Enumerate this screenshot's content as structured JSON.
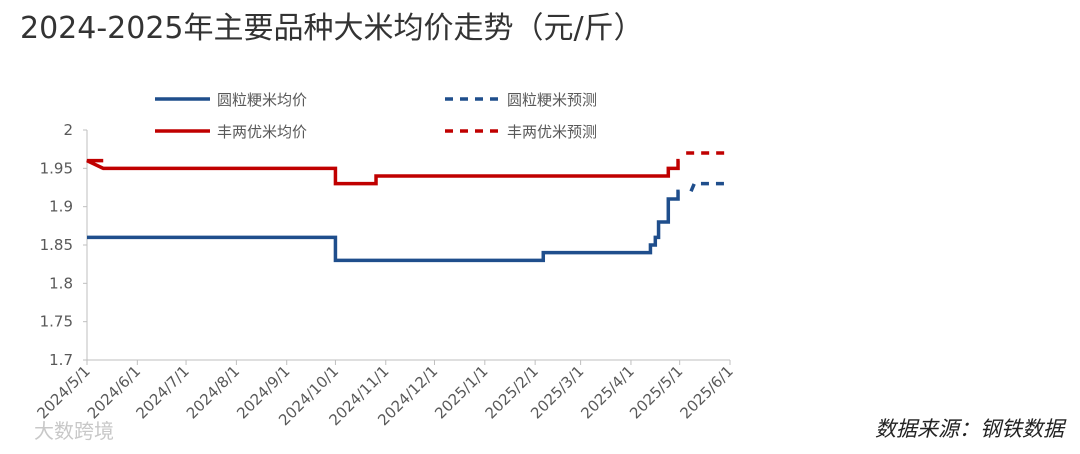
{
  "chart_data": {
    "type": "line",
    "title": "2024-2025年主要品种大米均价走势（元/斤）",
    "source": "数据来源：钢铁数据",
    "watermark": "大数跨境",
    "xlim": [
      "2024/5/1",
      "2025/6/1"
    ],
    "xticks": [
      "2024/5/1",
      "2024/6/1",
      "2024/7/1",
      "2024/8/1",
      "2024/9/1",
      "2024/10/1",
      "2024/11/1",
      "2024/12/1",
      "2025/1/1",
      "2025/2/1",
      "2025/3/1",
      "2025/4/1",
      "2025/5/1",
      "2025/6/1"
    ],
    "ylim": [
      1.7,
      2
    ],
    "yticks": [
      1.7,
      1.75,
      1.8,
      1.85,
      1.9,
      1.95,
      2
    ],
    "grid": false,
    "series": [
      {
        "name": "圆粒粳米均价",
        "color": "#1f4e8c",
        "dash": false,
        "x": [
          "2024/5/1",
          "2024/10/1",
          "2024/10/1",
          "2025/2/6",
          "2025/2/6",
          "2025/4/13",
          "2025/4/13",
          "2025/4/16",
          "2025/4/16",
          "2025/4/18",
          "2025/4/18",
          "2025/4/24",
          "2025/4/24",
          "2025/4/30",
          "2025/4/30",
          "2025/5/1"
        ],
        "values": [
          1.86,
          1.86,
          1.83,
          1.83,
          1.84,
          1.84,
          1.85,
          1.85,
          1.86,
          1.86,
          1.88,
          1.88,
          1.91,
          1.91,
          1.92,
          1.92
        ]
      },
      {
        "name": "丰两优米均价",
        "color": "#c00000",
        "dash": false,
        "x": [
          "2024/5/11",
          "2024/5/1",
          "2024/5/11",
          "2024/10/1",
          "2024/10/1",
          "2024/10/26",
          "2024/10/26",
          "2025/4/24",
          "2025/4/24",
          "2025/4/30",
          "2025/4/30",
          "2025/5/1"
        ],
        "values": [
          1.96,
          1.96,
          1.95,
          1.95,
          1.93,
          1.93,
          1.94,
          1.94,
          1.95,
          1.95,
          1.96,
          1.96
        ]
      },
      {
        "name": "圆粒粳米预测",
        "color": "#1f4e8c",
        "dash": true,
        "x": [
          "2025/5/8",
          "2025/5/10",
          "2025/6/1"
        ],
        "values": [
          1.92,
          1.93,
          1.93
        ]
      },
      {
        "name": "丰两优米预测",
        "color": "#c00000",
        "dash": true,
        "x": [
          "2025/5/5",
          "2025/6/1"
        ],
        "values": [
          1.97,
          1.97
        ]
      }
    ]
  }
}
